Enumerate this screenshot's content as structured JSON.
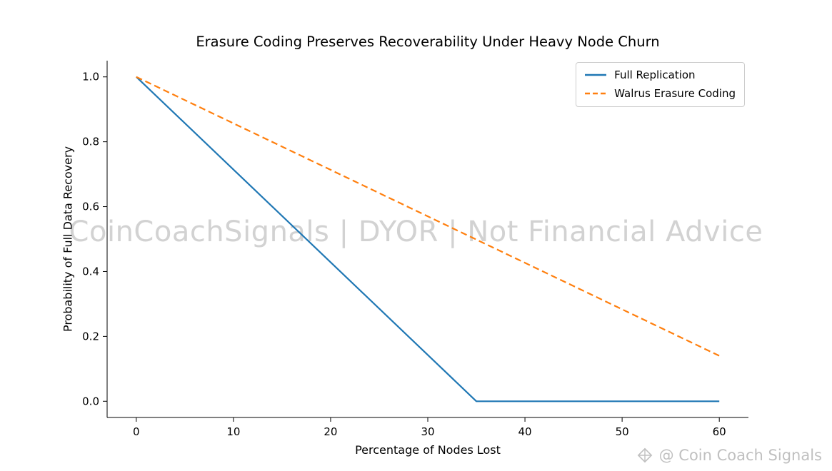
{
  "chart_data": {
    "type": "line",
    "title": "Erasure Coding Preserves Recoverability Under Heavy Node Churn",
    "xlabel": "Percentage of Nodes Lost",
    "ylabel": "Probability of Full Data Recovery",
    "xlim": [
      -3,
      63
    ],
    "ylim": [
      -0.05,
      1.05
    ],
    "xticks": [
      0,
      10,
      20,
      30,
      40,
      50,
      60
    ],
    "xtick_labels": [
      "0",
      "10",
      "20",
      "30",
      "40",
      "50",
      "60"
    ],
    "yticks": [
      0.0,
      0.2,
      0.4,
      0.6,
      0.8,
      1.0
    ],
    "ytick_labels": [
      "0.0",
      "0.2",
      "0.4",
      "0.6",
      "0.8",
      "1.0"
    ],
    "grid": false,
    "legend_position": "upper right",
    "series": [
      {
        "name": "Full Replication",
        "color": "#1f77b4",
        "style": "solid",
        "x": [
          0,
          35,
          60
        ],
        "y": [
          1.0,
          0.0,
          0.0
        ]
      },
      {
        "name": "Walrus Erasure Coding",
        "color": "#ff7f0e",
        "style": "dashed",
        "x": [
          0,
          60
        ],
        "y": [
          1.0,
          0.14
        ]
      }
    ]
  },
  "watermarks": {
    "center": "CoinCoachSignals | DYOR | Not Financial Advice",
    "bottom_right": "@ Coin Coach Signals"
  }
}
